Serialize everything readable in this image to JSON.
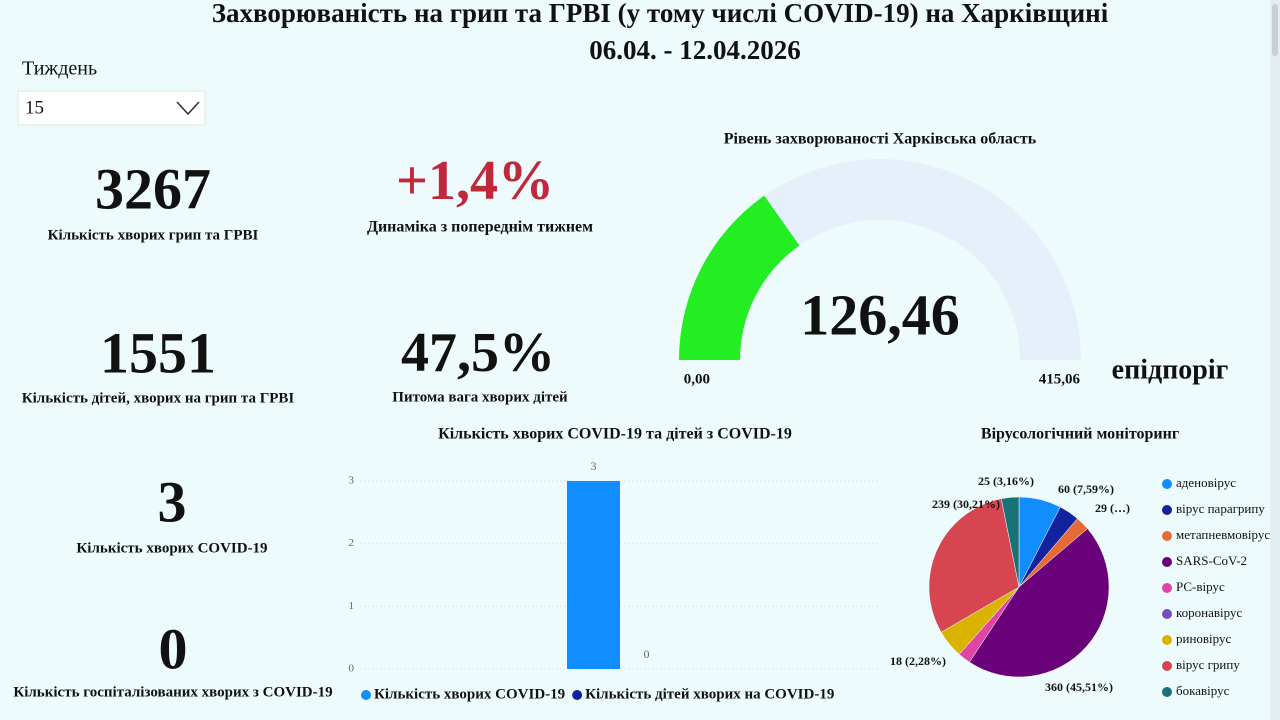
{
  "header": {
    "title": "Захворюваність на грип та ГРВІ (у тому числі COVID-19) на Харківщині",
    "dates": "06.04. - 12.04.2026"
  },
  "filter": {
    "label": "Тиждень",
    "value": "15"
  },
  "kpis": [
    {
      "value": "3267",
      "label": "Кількість хворих грип та ГРВІ"
    },
    {
      "value": "+1,4%",
      "label": "Динаміка з попереднім тижнем"
    },
    {
      "value": "1551",
      "label": "Кількість дітей, хворих на грип та ГРВІ"
    },
    {
      "value": "47,5%",
      "label": "Питома вага хворих дітей"
    },
    {
      "value": "3",
      "label": "Кількість хворих COVID-19"
    },
    {
      "value": "0",
      "label": "Кількість госпіталізованих хворих з COVID-19"
    }
  ],
  "chart_data": [
    {
      "type": "gauge",
      "title": "Рівень захворюваності Харківська область",
      "value": 126.46,
      "value_label": "126,46",
      "range": [
        {
          "value": 0,
          "label": "0,00"
        },
        {
          "value": 415.06,
          "label": "415,06"
        }
      ],
      "target_label": "епідпоріг",
      "color": "#22ee22",
      "track_color": "#e6f0fb"
    },
    {
      "type": "bar",
      "title": "Кількість хворих COVID-19 та дітей з COVID-19",
      "categories": [
        null
      ],
      "series": [
        {
          "name": "Кількість хворих COVID-19",
          "color": "#118dff",
          "values": [
            3
          ]
        },
        {
          "name": "Кількість дітей хворих на COVID-19",
          "color": "#12239e",
          "values": [
            0
          ]
        }
      ],
      "ylim": [
        0,
        3
      ],
      "yticks": [
        0,
        1,
        2,
        3
      ],
      "grid": true
    },
    {
      "type": "pie",
      "title": "Вірусологічний моніторинг",
      "categories": [
        "аденовірус",
        "вірус парагрипу",
        "метапневмовірус",
        "SARS-CoV-2",
        "РС-вірус",
        "коронавірус",
        "риновірус",
        "вірус грипу",
        "бокавірус"
      ],
      "values": [
        60,
        29,
        20,
        360,
        18,
        0,
        40,
        239,
        25
      ],
      "value_labels": [
        "60 (7,59%)",
        "29 (…)",
        null,
        "360 (45,51%)",
        "18 (2,28%)",
        null,
        null,
        "239 (30,21%)",
        "25 (3,16%)"
      ],
      "colors": [
        "#118dff",
        "#12239e",
        "#e66c37",
        "#6b007b",
        "#e044a7",
        "#744ec2",
        "#d9b300",
        "#d64550",
        "#197278"
      ]
    }
  ]
}
